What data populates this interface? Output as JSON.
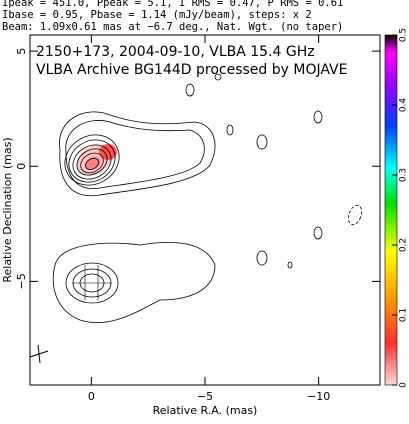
{
  "header": {
    "lines": [
      "Ipeak = 451.0, Ppeak = 5.1, I RMS = 0.47, P RMS = 0.61",
      "Ibase = 0.95, Pbase = 1.14 (mJy/beam), steps: x 2",
      "Beam: 1.09x0.61 mas at −6.7 deg., Nat. Wgt. (no taper)"
    ]
  },
  "chart_data": {
    "type": "contour",
    "annotations": [
      "2150+173, 2004-09-10, VLBA 15.4 GHz",
      "VLBA Archive BG144D processed by MOJAVE"
    ],
    "x_label": "Relative R.A. (mas)",
    "y_label": "Relative Declination (mas)",
    "xlim": [
      2.7,
      -12.7
    ],
    "xticks": [
      0,
      {
        "value": -5,
        "label": "−5"
      },
      {
        "value": -10,
        "label": "−10"
      }
    ],
    "ylim": [
      -9.5,
      5.7
    ],
    "yticks": [
      5,
      0,
      {
        "value": -5,
        "label": "−5"
      }
    ],
    "clim": [
      0,
      0.5
    ],
    "cticks": [
      0,
      0.1,
      0.2,
      0.3,
      0.4,
      0.5
    ]
  }
}
